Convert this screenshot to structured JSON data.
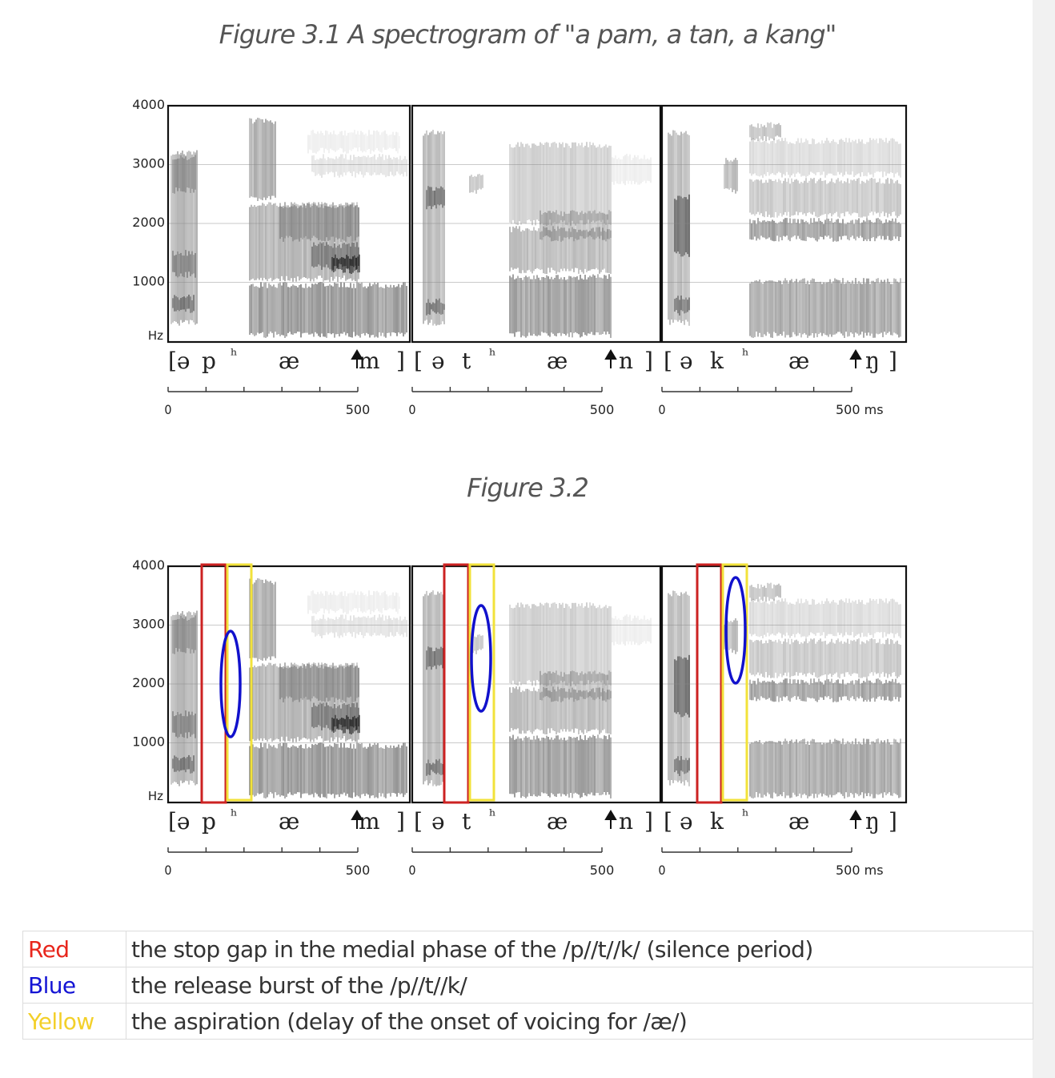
{
  "figure1": {
    "caption": "Figure 3.1 A spectrogram of \"a pam, a tan, a kang\""
  },
  "figure2": {
    "caption": "Figure 3.2"
  },
  "spectrogram": {
    "y_ticks": [
      "4000",
      "3000",
      "2000",
      "1000"
    ],
    "y_unit": "Hz",
    "panels": [
      {
        "transcription": [
          "[ə",
          "p",
          "ʰ",
          "æ",
          "m",
          "]"
        ],
        "x_ticks": [
          "0",
          "500"
        ]
      },
      {
        "transcription": [
          "[",
          "ə",
          "t",
          "ʰ",
          "æ",
          "n",
          "]"
        ],
        "x_ticks": [
          "0",
          "500"
        ]
      },
      {
        "transcription": [
          "[",
          "ə",
          "k",
          "ʰ",
          "æ",
          "ŋ",
          "]"
        ],
        "x_ticks": [
          "0",
          "500 ms"
        ]
      }
    ]
  },
  "annotation_colors": {
    "red": "#cc2222",
    "blue": "#1111cc",
    "yellow": "#f2e23a"
  },
  "legend": [
    {
      "key": "Red",
      "color": "#e8261c",
      "description": "the stop gap in the medial phase of the /p//t//k/ (silence period)"
    },
    {
      "key": "Blue",
      "color": "#1414d4",
      "description": "the release burst of the /p//t//k/"
    },
    {
      "key": "Yellow",
      "color": "#f3d02a",
      "description": "the aspiration (delay of the onset of voicing for /æ/)"
    }
  ]
}
